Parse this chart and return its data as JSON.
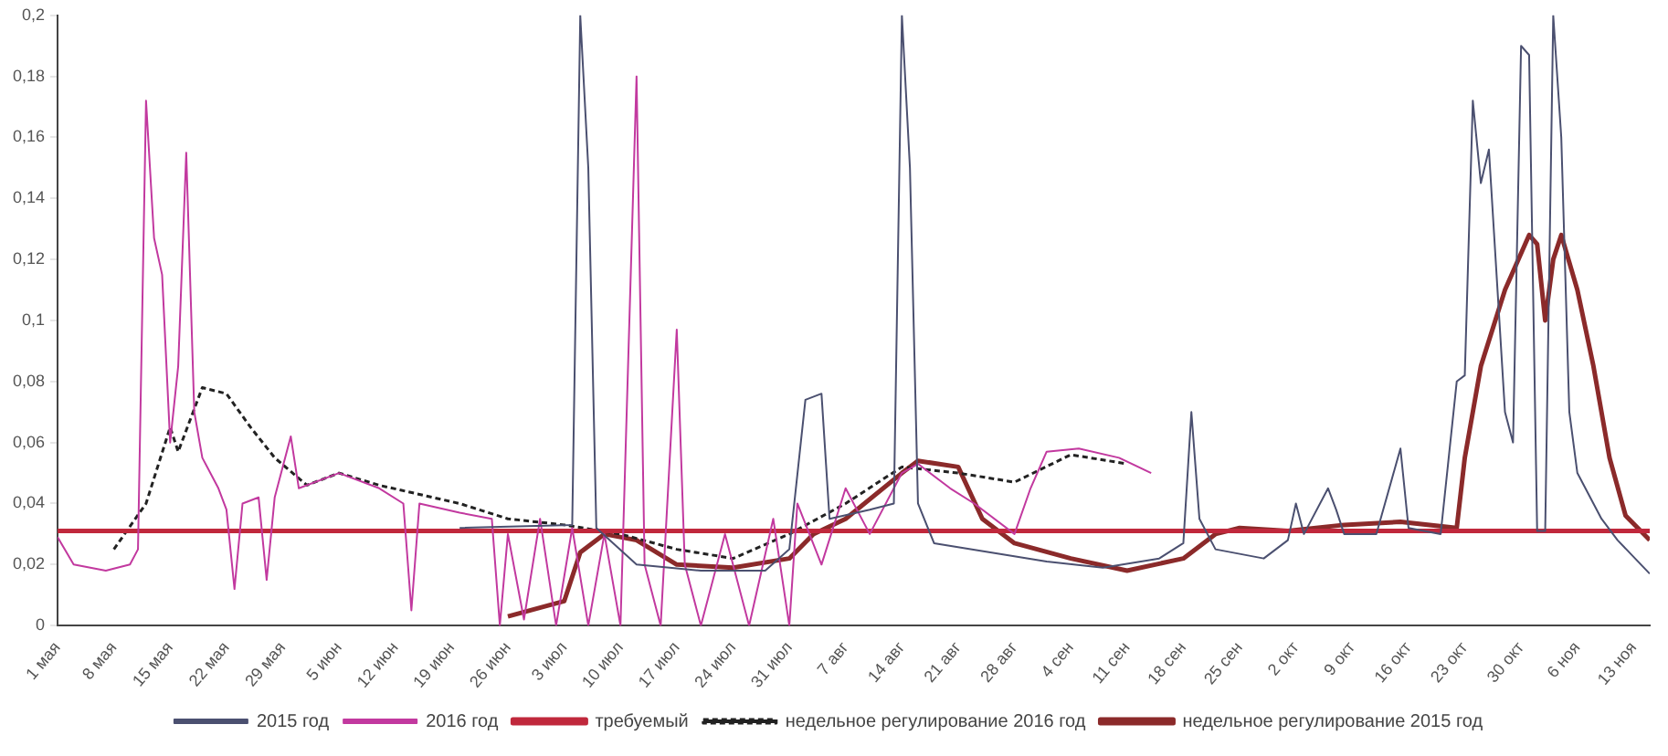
{
  "chart_data": {
    "type": "line",
    "legend": "bottom",
    "grid": false,
    "marker": "none",
    "xlim": [
      "--05-01",
      "--11-15"
    ],
    "xticks": [
      {
        "value": "--05-01",
        "label": "1 мая"
      },
      {
        "value": "--05-08",
        "label": "8 мая"
      },
      {
        "value": "--05-15",
        "label": "15 мая"
      },
      {
        "value": "--05-22",
        "label": "22 мая"
      },
      {
        "value": "--05-29",
        "label": "29 мая"
      },
      {
        "value": "--06-05",
        "label": "5 июн"
      },
      {
        "value": "--06-12",
        "label": "12 июн"
      },
      {
        "value": "--06-19",
        "label": "19 июн"
      },
      {
        "value": "--06-26",
        "label": "26 июн"
      },
      {
        "value": "--07-03",
        "label": "3 июл"
      },
      {
        "value": "--07-10",
        "label": "10 июл"
      },
      {
        "value": "--07-17",
        "label": "17 июл"
      },
      {
        "value": "--07-24",
        "label": "24 июл"
      },
      {
        "value": "--07-31",
        "label": "31 июл"
      },
      {
        "value": "--08-07",
        "label": "7 авг"
      },
      {
        "value": "--08-14",
        "label": "14 авг"
      },
      {
        "value": "--08-21",
        "label": "21 авг"
      },
      {
        "value": "--08-28",
        "label": "28 авг"
      },
      {
        "value": "--09-04",
        "label": "4 сен"
      },
      {
        "value": "--09-11",
        "label": "11 сен"
      },
      {
        "value": "--09-18",
        "label": "18 сен"
      },
      {
        "value": "--09-25",
        "label": "25 сен"
      },
      {
        "value": "--10-02",
        "label": "2 окт"
      },
      {
        "value": "--10-09",
        "label": "9 окт"
      },
      {
        "value": "--10-16",
        "label": "16 окт"
      },
      {
        "value": "--10-23",
        "label": "23 окт"
      },
      {
        "value": "--10-30",
        "label": "30 окт"
      },
      {
        "value": "--11-06",
        "label": "6 ноя"
      },
      {
        "value": "--11-13",
        "label": "13 ноя"
      }
    ],
    "ylim": [
      0,
      0.2
    ],
    "yticks": [
      0,
      {
        "value": 0.02,
        "label": "0,02"
      },
      {
        "value": 0.04,
        "label": "0,04"
      },
      {
        "value": 0.06,
        "label": "0,06"
      },
      {
        "value": 0.08,
        "label": "0,08"
      },
      {
        "value": 0.1,
        "label": "0,1"
      },
      {
        "value": 0.12,
        "label": "0,12"
      },
      {
        "value": 0.14,
        "label": "0,14"
      },
      {
        "value": 0.16,
        "label": "0,16"
      },
      {
        "value": 0.18,
        "label": "0,18"
      },
      {
        "value": 0.2,
        "label": "0,2"
      }
    ],
    "series": [
      {
        "name": "2015 год",
        "color": "#4b5070",
        "x": [
          "--06-20",
          "--07-04",
          "--07-05",
          "--07-06",
          "--07-07",
          "--07-12",
          "--07-20",
          "--07-28",
          "--07-31",
          "--08-02",
          "--08-04",
          "--08-05",
          "--08-10",
          "--08-13",
          "--08-14",
          "--08-15",
          "--08-16",
          "--08-18",
          "--08-25",
          "--09-01",
          "--09-08",
          "--09-15",
          "--09-18",
          "--09-19",
          "--09-20",
          "--09-22",
          "--09-28",
          "--10-01",
          "--10-02",
          "--10-03",
          "--10-06",
          "--10-07",
          "--10-08",
          "--10-12",
          "--10-15",
          "--10-16",
          "--10-20",
          "--10-22",
          "--10-23",
          "--10-24",
          "--10-25",
          "--10-26",
          "--10-28",
          "--10-29",
          "--10-30",
          "--10-31",
          "--11-01",
          "--11-02",
          "--11-03",
          "--11-04",
          "--11-05",
          "--11-06",
          "--11-09",
          "--11-11",
          "--11-15"
        ],
        "values": [
          0.032,
          0.033,
          0.2,
          0.15,
          0.032,
          0.02,
          0.018,
          0.018,
          0.025,
          0.074,
          0.076,
          0.035,
          0.038,
          0.04,
          0.2,
          0.15,
          0.04,
          0.027,
          0.024,
          0.021,
          0.019,
          0.022,
          0.027,
          0.07,
          0.035,
          0.025,
          0.022,
          0.028,
          0.04,
          0.03,
          0.045,
          0.038,
          0.03,
          0.03,
          0.058,
          0.032,
          0.03,
          0.08,
          0.082,
          0.172,
          0.145,
          0.156,
          0.07,
          0.06,
          0.19,
          0.187,
          0.031,
          0.031,
          0.2,
          0.16,
          0.07,
          0.05,
          0.035,
          0.028,
          0.017
        ]
      },
      {
        "name": "2016 год",
        "color": "#c2399f",
        "x": [
          "--05-01",
          "--05-03",
          "--05-07",
          "--05-10",
          "--05-11",
          "--05-12",
          "--05-13",
          "--05-14",
          "--05-15",
          "--05-16",
          "--05-17",
          "--05-18",
          "--05-19",
          "--05-21",
          "--05-22",
          "--05-23",
          "--05-24",
          "--05-26",
          "--05-27",
          "--05-28",
          "--05-30",
          "--05-31",
          "--06-05",
          "--06-10",
          "--06-13",
          "--06-14",
          "--06-15",
          "--06-20",
          "--06-24",
          "--06-25",
          "--06-26",
          "--06-28",
          "--06-30",
          "--07-02",
          "--07-04",
          "--07-06",
          "--07-08",
          "--07-10",
          "--07-12",
          "--07-13",
          "--07-15",
          "--07-17",
          "--07-18",
          "--07-20",
          "--07-23",
          "--07-26",
          "--07-29",
          "--07-31",
          "--08-01",
          "--08-04",
          "--08-07",
          "--08-10",
          "--08-14",
          "--08-16",
          "--08-20",
          "--08-23",
          "--08-28",
          "--08-30",
          "--09-01",
          "--09-05",
          "--09-10",
          "--09-14"
        ],
        "values": [
          0.029,
          0.02,
          0.018,
          0.02,
          0.025,
          0.172,
          0.127,
          0.115,
          0.06,
          0.085,
          0.155,
          0.07,
          0.055,
          0.045,
          0.038,
          0.012,
          0.04,
          0.042,
          0.015,
          0.042,
          0.062,
          0.045,
          0.05,
          0.045,
          0.04,
          0.005,
          0.04,
          0.037,
          0.035,
          0.0,
          0.03,
          0.002,
          0.035,
          0.0,
          0.032,
          0.0,
          0.03,
          0.0,
          0.18,
          0.02,
          0.0,
          0.097,
          0.02,
          0.0,
          0.03,
          0.0,
          0.035,
          0.0,
          0.04,
          0.02,
          0.045,
          0.03,
          0.05,
          0.053,
          0.045,
          0.04,
          0.03,
          0.045,
          0.057,
          0.058,
          0.055,
          0.05
        ]
      },
      {
        "name": "требуемый",
        "color": "#c0283c",
        "x": [
          "--05-01",
          "--11-15"
        ],
        "values": [
          0.031,
          0.031
        ]
      },
      {
        "name": "недельное регулирование 2016 год",
        "color": "#222222",
        "line_style": "dashed",
        "x": [
          "--05-08",
          "--05-12",
          "--05-15",
          "--05-16",
          "--05-19",
          "--05-22",
          "--05-25",
          "--05-28",
          "--06-01",
          "--06-05",
          "--06-10",
          "--06-15",
          "--06-20",
          "--06-26",
          "--07-03",
          "--07-10",
          "--07-17",
          "--07-24",
          "--07-31",
          "--08-07",
          "--08-14",
          "--08-21",
          "--08-28",
          "--09-04",
          "--09-11"
        ],
        "values": [
          0.025,
          0.04,
          0.065,
          0.057,
          0.078,
          0.076,
          0.065,
          0.055,
          0.046,
          0.05,
          0.046,
          0.043,
          0.04,
          0.035,
          0.033,
          0.03,
          0.025,
          0.022,
          0.03,
          0.04,
          0.052,
          0.05,
          0.047,
          0.056,
          0.053
        ]
      },
      {
        "name": "недельное регулирование 2015 год",
        "color": "#8b2a2a",
        "x": [
          "--06-26",
          "--07-03",
          "--07-05",
          "--07-08",
          "--07-12",
          "--07-17",
          "--07-24",
          "--07-31",
          "--08-03",
          "--08-07",
          "--08-14",
          "--08-16",
          "--08-21",
          "--08-24",
          "--08-28",
          "--09-04",
          "--09-11",
          "--09-18",
          "--09-22",
          "--09-25",
          "--10-01",
          "--10-08",
          "--10-15",
          "--10-22",
          "--10-23",
          "--10-25",
          "--10-28",
          "--10-31",
          "--11-01",
          "--11-02",
          "--11-03",
          "--11-04",
          "--11-06",
          "--11-08",
          "--11-10",
          "--11-12",
          "--11-15"
        ],
        "values": [
          0.003,
          0.008,
          0.024,
          0.03,
          0.028,
          0.02,
          0.019,
          0.022,
          0.03,
          0.035,
          0.05,
          0.054,
          0.052,
          0.035,
          0.027,
          0.022,
          0.018,
          0.022,
          0.03,
          0.032,
          0.031,
          0.033,
          0.034,
          0.032,
          0.055,
          0.085,
          0.11,
          0.128,
          0.125,
          0.1,
          0.12,
          0.128,
          0.11,
          0.085,
          0.055,
          0.036,
          0.028
        ]
      }
    ]
  }
}
